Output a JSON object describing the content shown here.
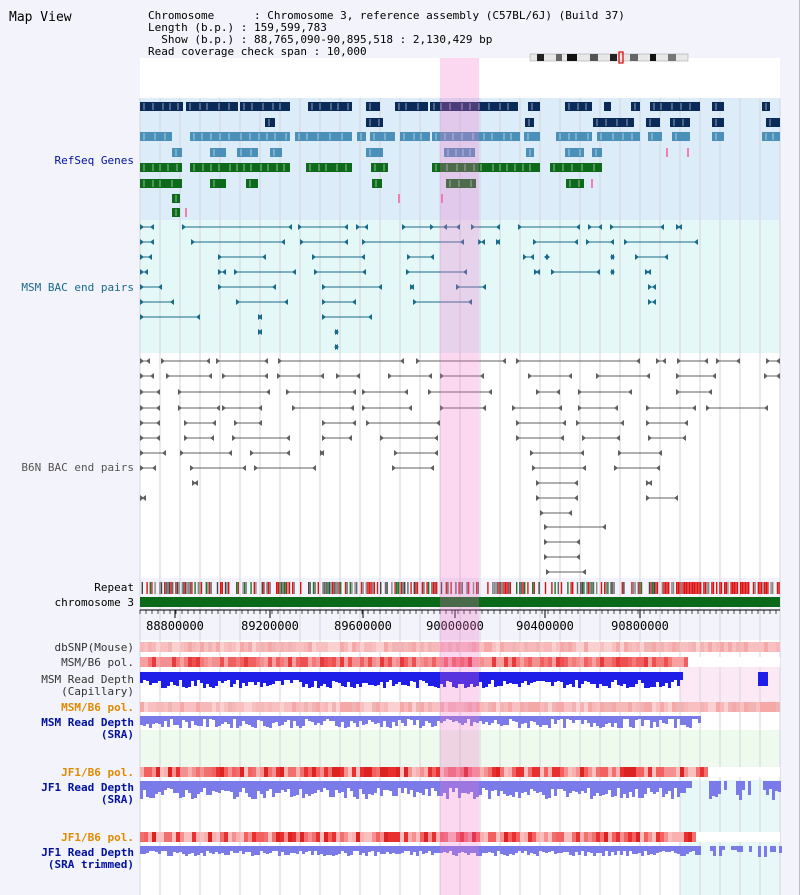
{
  "view": {
    "title": "Map View"
  },
  "info": {
    "line1_key": "Chromosome",
    "line1_val": "Chromosome 3, reference assembly (C57BL/6J) (Build 37)",
    "line2_key": "Length (b.p.)",
    "line2_val": "159,599,783",
    "line3_key": "Show (b.p.)",
    "line3_val": "88,765,090-90,895,518 : 2,130,429 bp",
    "line4_key": "Read coverage check span",
    "line4_val": "10,000"
  },
  "tracks": {
    "refseq": "RefSeq Genes",
    "msm_bac": "MSM BAC end pairs",
    "b6n_bac": "B6N BAC end pairs",
    "repeat": "Repeat",
    "chrom": "chromosome 3",
    "dbsnp": "dbSNP(Mouse)",
    "msm_b6_pol": "MSM/B6 pol.",
    "msm_depth_cap_1": "MSM Read Depth",
    "msm_depth_cap_2": "(Capillary)",
    "msm_b6_pol_sra": "MSM/B6 pol.",
    "msm_depth_sra_1": "MSM Read Depth",
    "msm_depth_sra_2": "(SRA)",
    "jf1_pol": "JF1/B6 pol.",
    "jf1_depth_1": "JF1 Read Depth",
    "jf1_depth_2": "(SRA)",
    "jf1_pol_trim": "JF1/B6 pol.",
    "jf1_trim_1": "JF1 Read Depth",
    "jf1_trim_2": "(SRA trimmed)"
  },
  "axis": {
    "ticks": [
      "88800000",
      "89200000",
      "89600000",
      "90000000",
      "90400000",
      "90800000"
    ]
  },
  "colors": {
    "refseq_bg": "#dcecf8",
    "msm_bac_bg": "#e4f8f8",
    "highlight": "#f8d8f0",
    "gene_dark": "#0a2a5a",
    "gene_mid": "#4a90b8",
    "gene_green": "#0c6a1a",
    "msm_bac_line": "#1a6a8a",
    "b6n_bac_line": "#606060",
    "depth_blue": "#1e1ee8",
    "depth_sra": "#7a7ae8",
    "label_blue": "#0010a0",
    "label_orange": "#e08a00",
    "label_teal": "#1a6a8a"
  }
}
